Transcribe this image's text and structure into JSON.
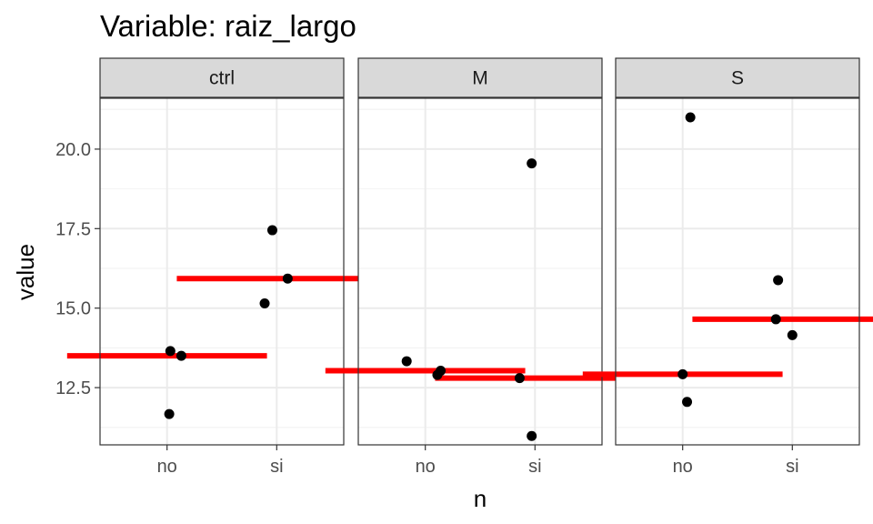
{
  "chart_data": {
    "type": "scatter",
    "title": "Variable: raiz_largo",
    "xlabel": "n",
    "ylabel": "value",
    "categories": [
      "no",
      "si"
    ],
    "ylim": [
      10.7,
      21.6
    ],
    "y_ticks": [
      12.5,
      15.0,
      17.5,
      20.0
    ],
    "y_tick_labels": [
      "12.5",
      "15.0",
      "17.5",
      "20.0"
    ],
    "grid": true,
    "panels": [
      {
        "label": "ctrl",
        "points": [
          {
            "x": "no",
            "jitter": 0.03,
            "y": 13.65
          },
          {
            "x": "no",
            "jitter": 0.13,
            "y": 13.5
          },
          {
            "x": "no",
            "jitter": 0.02,
            "y": 11.67
          },
          {
            "x": "si",
            "jitter": -0.04,
            "y": 17.45
          },
          {
            "x": "si",
            "jitter": 0.1,
            "y": 15.93
          },
          {
            "x": "si",
            "jitter": -0.11,
            "y": 15.15
          }
        ],
        "means": [
          {
            "x": "no",
            "y": 13.5
          },
          {
            "x": "si",
            "y": 15.93
          }
        ]
      },
      {
        "label": "M",
        "points": [
          {
            "x": "no",
            "jitter": -0.17,
            "y": 13.33
          },
          {
            "x": "no",
            "jitter": 0.14,
            "y": 13.03
          },
          {
            "x": "no",
            "jitter": 0.11,
            "y": 12.9
          },
          {
            "x": "si",
            "jitter": -0.03,
            "y": 19.55
          },
          {
            "x": "si",
            "jitter": -0.14,
            "y": 12.8
          },
          {
            "x": "si",
            "jitter": -0.03,
            "y": 10.98
          }
        ],
        "means": [
          {
            "x": "no",
            "y": 13.03
          },
          {
            "x": "si",
            "y": 12.8
          }
        ]
      },
      {
        "label": "S",
        "points": [
          {
            "x": "no",
            "jitter": 0.07,
            "y": 21.0
          },
          {
            "x": "no",
            "jitter": 0.0,
            "y": 12.92
          },
          {
            "x": "no",
            "jitter": 0.04,
            "y": 12.05
          },
          {
            "x": "si",
            "jitter": -0.13,
            "y": 15.88
          },
          {
            "x": "si",
            "jitter": -0.15,
            "y": 14.65
          },
          {
            "x": "si",
            "jitter": 0.0,
            "y": 14.15
          }
        ],
        "means": [
          {
            "x": "no",
            "y": 12.92
          },
          {
            "x": "si",
            "y": 14.65
          }
        ]
      }
    ],
    "colors": {
      "points": "#000000",
      "mean_line": "#ff0000",
      "strip_fill": "#d9d9d9",
      "panel_border": "#333333",
      "grid_major": "#ebebeb",
      "grid_minor": "#f2f2f2"
    }
  }
}
